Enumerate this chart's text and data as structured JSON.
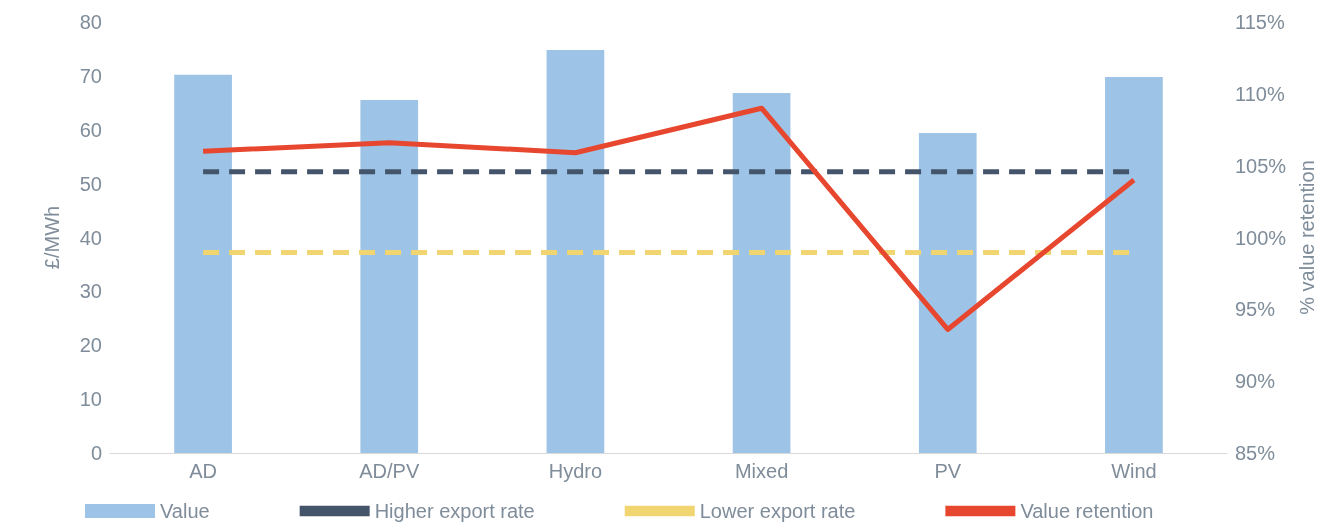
{
  "chart_data": {
    "type": "bar",
    "ylabel": "£/MWh",
    "y2label": "% value retention",
    "categories": [
      "AD",
      "AD/PV",
      "Hydro",
      "Mixed",
      "PV",
      "Wind"
    ],
    "series": [
      {
        "name": "Value",
        "color": "#9dc3e6",
        "values": [
          70.2,
          65.5,
          74.8,
          66.8,
          59.4,
          69.8
        ]
      },
      {
        "name": "Higher export rate",
        "type": "line",
        "color": "#44546a",
        "line_style": "dashed",
        "values": [
          52.2,
          52.2,
          52.2,
          52.2,
          52.2,
          52.2
        ]
      },
      {
        "name": "Lower export rate",
        "type": "line",
        "color": "#f0d570",
        "line_style": "dashed",
        "values": [
          37.2,
          37.2,
          37.2,
          37.2,
          37.2,
          37.2
        ]
      },
      {
        "name": "Value retention",
        "type": "line",
        "color": "#e8472f",
        "line_style": "solid",
        "axis": "y2",
        "values": [
          106.0,
          106.6,
          105.9,
          109.0,
          93.6,
          104.0
        ]
      }
    ],
    "ylim": [
      0,
      80
    ],
    "yticks": [
      0,
      10,
      20,
      30,
      40,
      50,
      60,
      70,
      80
    ],
    "y2lim": [
      85,
      115
    ],
    "y2ticks": [
      {
        "value": 85,
        "label": "85%"
      },
      {
        "value": 90,
        "label": "90%"
      },
      {
        "value": 95,
        "label": "95%"
      },
      {
        "value": 100,
        "label": "100%"
      },
      {
        "value": 105,
        "label": "105%"
      },
      {
        "value": 110,
        "label": "110%"
      },
      {
        "value": 115,
        "label": "115%"
      }
    ],
    "grid": false,
    "legend": "bottom",
    "marker": "none"
  }
}
